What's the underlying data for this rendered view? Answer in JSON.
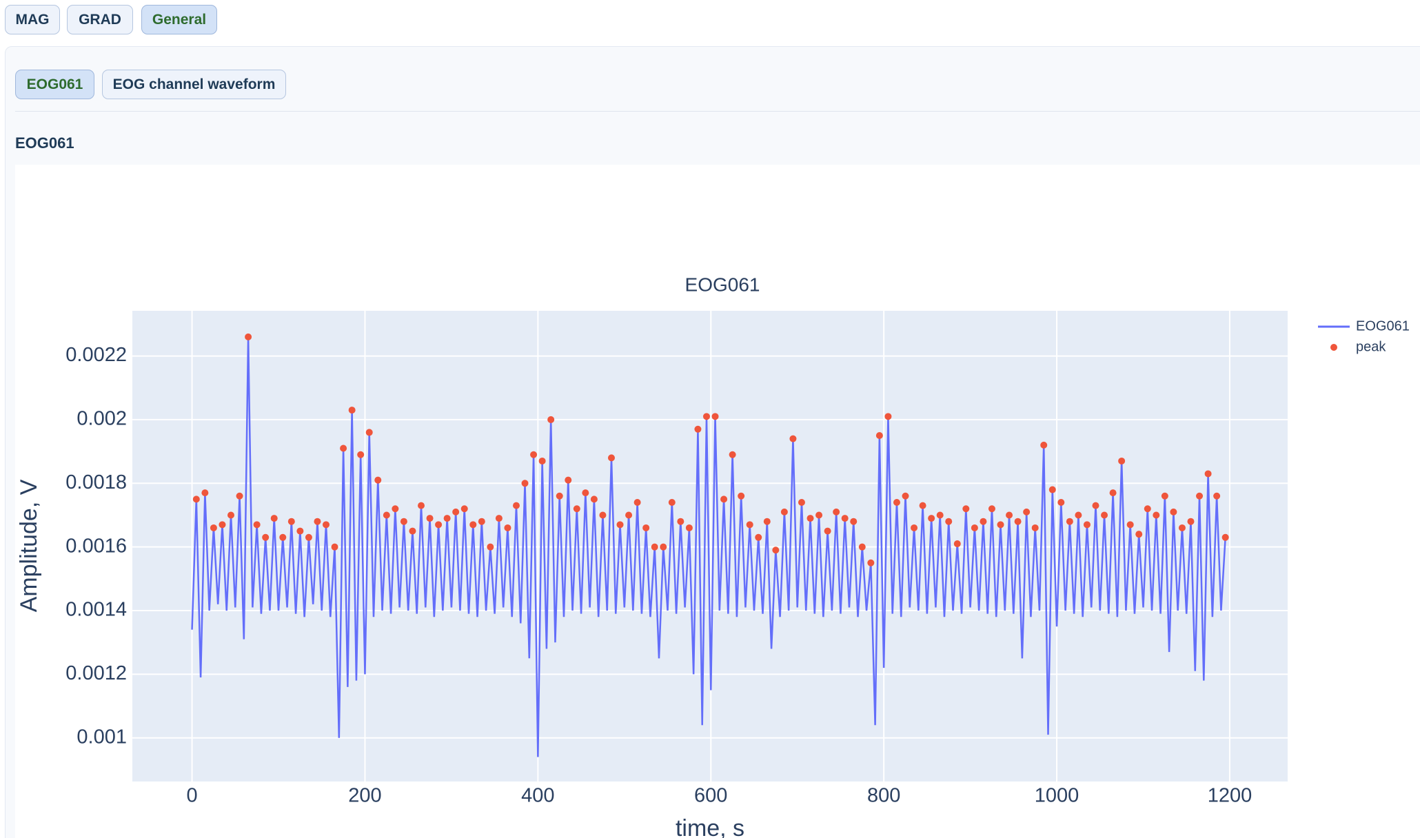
{
  "tabs": [
    "MAG",
    "GRAD",
    "General"
  ],
  "subtabs": [
    "EOG061",
    "EOG channel waveform"
  ],
  "section_title": "EOG061",
  "chart_data": {
    "type": "line",
    "title": "EOG061",
    "x_label": "time, s",
    "y_label": "Amplitude, V",
    "series": [
      {
        "name": "EOG061",
        "color": "#636efa",
        "mode": "lines",
        "x": [
          0,
          5,
          10,
          15,
          20,
          25,
          30,
          35,
          40,
          45,
          50,
          55,
          60,
          65,
          70,
          75,
          80,
          85,
          90,
          95,
          100,
          105,
          110,
          115,
          120,
          125,
          130,
          135,
          140,
          145,
          150,
          155,
          160,
          165,
          170,
          175,
          180,
          185,
          190,
          195,
          200,
          205,
          210,
          215,
          220,
          225,
          230,
          235,
          240,
          245,
          250,
          255,
          260,
          265,
          270,
          275,
          280,
          285,
          290,
          295,
          300,
          305,
          310,
          315,
          320,
          325,
          330,
          335,
          340,
          345,
          350,
          355,
          360,
          365,
          370,
          375,
          380,
          385,
          390,
          395,
          400,
          405,
          410,
          415,
          420,
          425,
          430,
          435,
          440,
          445,
          450,
          455,
          460,
          465,
          470,
          475,
          480,
          485,
          490,
          495,
          500,
          505,
          510,
          515,
          520,
          525,
          530,
          535,
          540,
          545,
          550,
          555,
          560,
          565,
          570,
          575,
          580,
          585,
          590,
          595,
          600,
          605,
          610,
          615,
          620,
          625,
          630,
          635,
          640,
          645,
          650,
          655,
          660,
          665,
          670,
          675,
          680,
          685,
          690,
          695,
          700,
          705,
          710,
          715,
          720,
          725,
          730,
          735,
          740,
          745,
          750,
          755,
          760,
          765,
          770,
          775,
          780,
          785,
          790,
          795,
          800,
          805,
          810,
          815,
          820,
          825,
          830,
          835,
          840,
          845,
          850,
          855,
          860,
          865,
          870,
          875,
          880,
          885,
          890,
          895,
          900,
          905,
          910,
          915,
          920,
          925,
          930,
          935,
          940,
          945,
          950,
          955,
          960,
          965,
          970,
          975,
          980,
          985,
          990,
          995,
          1000,
          1005,
          1010,
          1015,
          1020,
          1025,
          1030,
          1035,
          1040,
          1045,
          1050,
          1055,
          1060,
          1065,
          1070,
          1075,
          1080,
          1085,
          1090,
          1095,
          1100,
          1105,
          1110,
          1115,
          1120,
          1125,
          1130,
          1135,
          1140,
          1145,
          1150,
          1155,
          1160,
          1165,
          1170,
          1175,
          1180,
          1185,
          1190,
          1195
        ],
        "values": [
          0.00134,
          0.00175,
          0.00119,
          0.00177,
          0.0014,
          0.00166,
          0.00142,
          0.00167,
          0.0014,
          0.0017,
          0.00141,
          0.00176,
          0.00131,
          0.00226,
          0.00141,
          0.00167,
          0.00139,
          0.00163,
          0.0014,
          0.00169,
          0.0014,
          0.00163,
          0.00141,
          0.00168,
          0.00139,
          0.00165,
          0.00138,
          0.00163,
          0.00142,
          0.00168,
          0.0014,
          0.00167,
          0.00138,
          0.0016,
          0.001,
          0.00191,
          0.00116,
          0.00203,
          0.00118,
          0.00189,
          0.0012,
          0.00196,
          0.00138,
          0.00181,
          0.0014,
          0.0017,
          0.00139,
          0.00172,
          0.00141,
          0.00168,
          0.0014,
          0.00165,
          0.00139,
          0.00173,
          0.00141,
          0.00169,
          0.00138,
          0.00167,
          0.0014,
          0.00169,
          0.00141,
          0.00171,
          0.0014,
          0.00172,
          0.00139,
          0.00167,
          0.00138,
          0.00168,
          0.0014,
          0.0016,
          0.00139,
          0.00169,
          0.00141,
          0.00166,
          0.00138,
          0.00173,
          0.00136,
          0.0018,
          0.00125,
          0.00189,
          0.00094,
          0.00187,
          0.00128,
          0.002,
          0.0013,
          0.00176,
          0.00138,
          0.00181,
          0.0014,
          0.00172,
          0.00139,
          0.00177,
          0.00141,
          0.00175,
          0.00138,
          0.0017,
          0.0014,
          0.00188,
          0.00139,
          0.00167,
          0.00141,
          0.0017,
          0.0014,
          0.00174,
          0.00139,
          0.00166,
          0.00138,
          0.0016,
          0.00125,
          0.0016,
          0.0014,
          0.00174,
          0.00139,
          0.00168,
          0.00141,
          0.00166,
          0.0012,
          0.00197,
          0.00104,
          0.00201,
          0.00115,
          0.00201,
          0.0014,
          0.00175,
          0.00139,
          0.00189,
          0.00138,
          0.00176,
          0.00141,
          0.00167,
          0.0014,
          0.00163,
          0.00139,
          0.00168,
          0.00128,
          0.00159,
          0.00138,
          0.00171,
          0.0014,
          0.00194,
          0.00141,
          0.00174,
          0.0014,
          0.00169,
          0.00139,
          0.0017,
          0.00138,
          0.00165,
          0.0014,
          0.00171,
          0.00139,
          0.00169,
          0.00141,
          0.00168,
          0.00138,
          0.0016,
          0.0014,
          0.00155,
          0.00104,
          0.00195,
          0.00122,
          0.00201,
          0.00139,
          0.00174,
          0.00138,
          0.00176,
          0.00141,
          0.00166,
          0.0014,
          0.00173,
          0.00139,
          0.00169,
          0.00141,
          0.0017,
          0.00138,
          0.00168,
          0.0014,
          0.00161,
          0.00139,
          0.00172,
          0.00141,
          0.00166,
          0.0014,
          0.00168,
          0.00139,
          0.00172,
          0.00138,
          0.00167,
          0.0014,
          0.0017,
          0.00139,
          0.00168,
          0.00125,
          0.00171,
          0.00138,
          0.00166,
          0.0014,
          0.00192,
          0.00101,
          0.00178,
          0.00135,
          0.00174,
          0.0014,
          0.00168,
          0.00139,
          0.0017,
          0.00138,
          0.00167,
          0.00141,
          0.00173,
          0.0014,
          0.0017,
          0.00139,
          0.00177,
          0.00138,
          0.00187,
          0.0014,
          0.00167,
          0.00139,
          0.00164,
          0.00141,
          0.00172,
          0.0014,
          0.0017,
          0.00139,
          0.00176,
          0.00127,
          0.00171,
          0.0014,
          0.00166,
          0.00139,
          0.00168,
          0.00121,
          0.00176,
          0.00118,
          0.00183,
          0.00138,
          0.00176,
          0.0014,
          0.00163
        ]
      },
      {
        "name": "peak",
        "color": "#ef553b",
        "mode": "markers",
        "x": [
          5,
          15,
          25,
          35,
          45,
          55,
          65,
          75,
          85,
          95,
          105,
          115,
          125,
          135,
          145,
          155,
          165,
          175,
          185,
          195,
          205,
          215,
          225,
          235,
          245,
          255,
          265,
          275,
          285,
          295,
          305,
          315,
          325,
          335,
          345,
          355,
          365,
          375,
          385,
          395,
          405,
          415,
          425,
          435,
          445,
          455,
          465,
          475,
          485,
          495,
          505,
          515,
          525,
          535,
          545,
          555,
          565,
          575,
          585,
          595,
          605,
          615,
          625,
          635,
          645,
          655,
          665,
          675,
          685,
          695,
          705,
          715,
          725,
          735,
          745,
          755,
          765,
          775,
          785,
          795,
          805,
          815,
          825,
          835,
          845,
          855,
          865,
          875,
          885,
          895,
          905,
          915,
          925,
          935,
          945,
          955,
          965,
          975,
          985,
          995,
          1005,
          1015,
          1025,
          1035,
          1045,
          1055,
          1065,
          1075,
          1085,
          1095,
          1105,
          1115,
          1125,
          1135,
          1145,
          1155,
          1165,
          1175,
          1185,
          1195
        ],
        "values": [
          0.00175,
          0.00177,
          0.00166,
          0.00167,
          0.0017,
          0.00176,
          0.00226,
          0.00167,
          0.00163,
          0.00169,
          0.00163,
          0.00168,
          0.00165,
          0.00163,
          0.00168,
          0.00167,
          0.0016,
          0.00191,
          0.00203,
          0.00189,
          0.00196,
          0.00181,
          0.0017,
          0.00172,
          0.00168,
          0.00165,
          0.00173,
          0.00169,
          0.00167,
          0.00169,
          0.00171,
          0.00172,
          0.00167,
          0.00168,
          0.0016,
          0.00169,
          0.00166,
          0.00173,
          0.0018,
          0.00189,
          0.00187,
          0.002,
          0.00176,
          0.00181,
          0.00172,
          0.00177,
          0.00175,
          0.0017,
          0.00188,
          0.00167,
          0.0017,
          0.00174,
          0.00166,
          0.0016,
          0.0016,
          0.00174,
          0.00168,
          0.00166,
          0.00197,
          0.00201,
          0.00201,
          0.00175,
          0.00189,
          0.00176,
          0.00167,
          0.00163,
          0.00168,
          0.00159,
          0.00171,
          0.00194,
          0.00174,
          0.00169,
          0.0017,
          0.00165,
          0.00171,
          0.00169,
          0.00168,
          0.0016,
          0.00155,
          0.00195,
          0.00201,
          0.00174,
          0.00176,
          0.00166,
          0.00173,
          0.00169,
          0.0017,
          0.00168,
          0.00161,
          0.00172,
          0.00166,
          0.00168,
          0.00172,
          0.00167,
          0.0017,
          0.00168,
          0.00171,
          0.00166,
          0.00192,
          0.00178,
          0.00174,
          0.00168,
          0.0017,
          0.00167,
          0.00173,
          0.0017,
          0.00177,
          0.00187,
          0.00167,
          0.00164,
          0.00172,
          0.0017,
          0.00176,
          0.00171,
          0.00166,
          0.00168,
          0.00176,
          0.00183,
          0.00176,
          0.00163
        ]
      }
    ],
    "xlim": [
      -69,
      1267
    ],
    "ylim": [
      0.000863,
      0.002342
    ],
    "xticks": [
      0,
      200,
      400,
      600,
      800,
      1000,
      1200
    ],
    "yticks": [
      0.001,
      0.0012,
      0.0014,
      0.0016,
      0.0018,
      0.002,
      0.0022
    ],
    "grid": true,
    "legend": "outside-right"
  }
}
